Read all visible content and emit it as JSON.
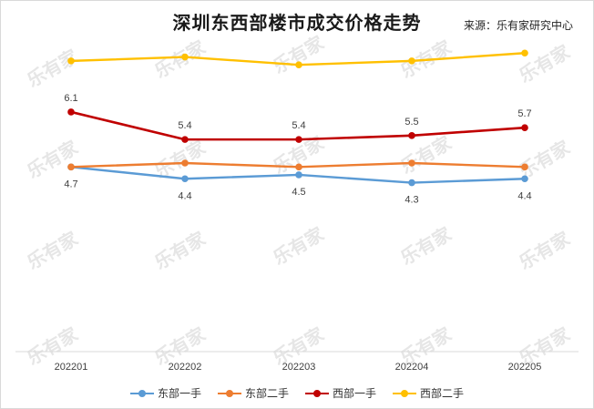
{
  "header": {
    "title": "深圳东西部楼市成交价格走势",
    "source": "来源：乐有家研究中心"
  },
  "watermark": {
    "text": "乐有家"
  },
  "chart_data": {
    "type": "line",
    "title": "深圳东西部楼市成交价格走势",
    "xlabel": "",
    "ylabel": "",
    "categories": [
      "202201",
      "202202",
      "202203",
      "202204",
      "202205"
    ],
    "ylim": [
      0,
      8
    ],
    "grid": false,
    "legend_position": "bottom",
    "series": [
      {
        "name": "东部一手",
        "color": "#5b9bd5",
        "values": [
          4.7,
          4.4,
          4.5,
          4.3,
          4.4
        ],
        "labels": [
          "4.7",
          "4.4",
          "4.5",
          "4.3",
          "4.4"
        ]
      },
      {
        "name": "东部二手",
        "color": "#ed7d31",
        "values": [
          4.7,
          4.8,
          4.7,
          4.8,
          4.7
        ],
        "labels": []
      },
      {
        "name": "西部一手",
        "color": "#c00000",
        "values": [
          6.1,
          5.4,
          5.4,
          5.5,
          5.7
        ],
        "labels": [
          "6.1",
          "5.4",
          "5.4",
          "5.5",
          "5.7"
        ]
      },
      {
        "name": "西部二手",
        "color": "#ffc000",
        "values": [
          7.4,
          7.5,
          7.3,
          7.4,
          7.6
        ],
        "labels": []
      }
    ]
  }
}
